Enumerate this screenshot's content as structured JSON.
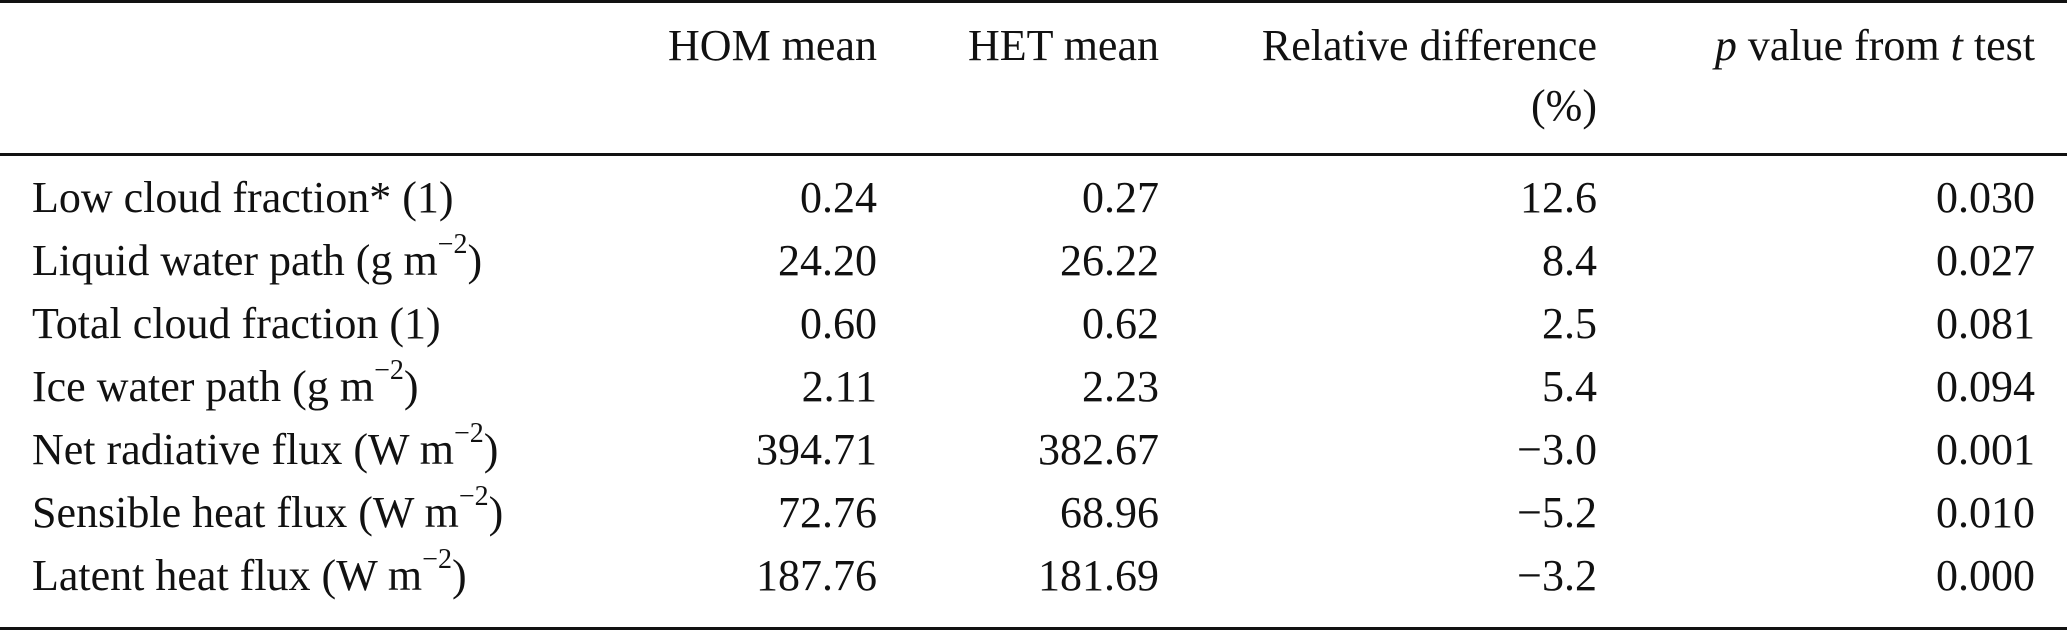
{
  "table": {
    "headers": {
      "hom_mean": "HOM mean",
      "het_mean": "HET mean",
      "rel_diff_line1": "Relative difference",
      "rel_diff_line2": "(%)",
      "pval_p": "p",
      "pval_mid": " value from ",
      "pval_t": "t",
      "pval_end": " test"
    },
    "rows": [
      {
        "label": "Low cloud fraction* (1)",
        "sup": "",
        "label_end": "",
        "hom": "0.24",
        "het": "0.27",
        "rel": "12.6",
        "p": "0.030"
      },
      {
        "label": "Liquid water path (g m",
        "sup": "−2",
        "label_end": ")",
        "hom": "24.20",
        "het": "26.22",
        "rel": "8.4",
        "p": "0.027"
      },
      {
        "label": "Total cloud fraction (1)",
        "sup": "",
        "label_end": "",
        "hom": "0.60",
        "het": "0.62",
        "rel": "2.5",
        "p": "0.081"
      },
      {
        "label": "Ice water path (g m",
        "sup": "−2",
        "label_end": ")",
        "hom": "2.11",
        "het": "2.23",
        "rel": "5.4",
        "p": "0.094"
      },
      {
        "label": "Net radiative flux (W m",
        "sup": "−2",
        "label_end": ")",
        "hom": "394.71",
        "het": "382.67",
        "rel": "−3.0",
        "p": "0.001"
      },
      {
        "label": "Sensible heat flux (W m",
        "sup": "−2",
        "label_end": ")",
        "hom": "72.76",
        "het": "68.96",
        "rel": "−5.2",
        "p": "0.010"
      },
      {
        "label": "Latent heat flux (W m",
        "sup": "−2",
        "label_end": ")",
        "hom": "187.76",
        "het": "181.69",
        "rel": "−3.2",
        "p": "0.000"
      }
    ]
  }
}
